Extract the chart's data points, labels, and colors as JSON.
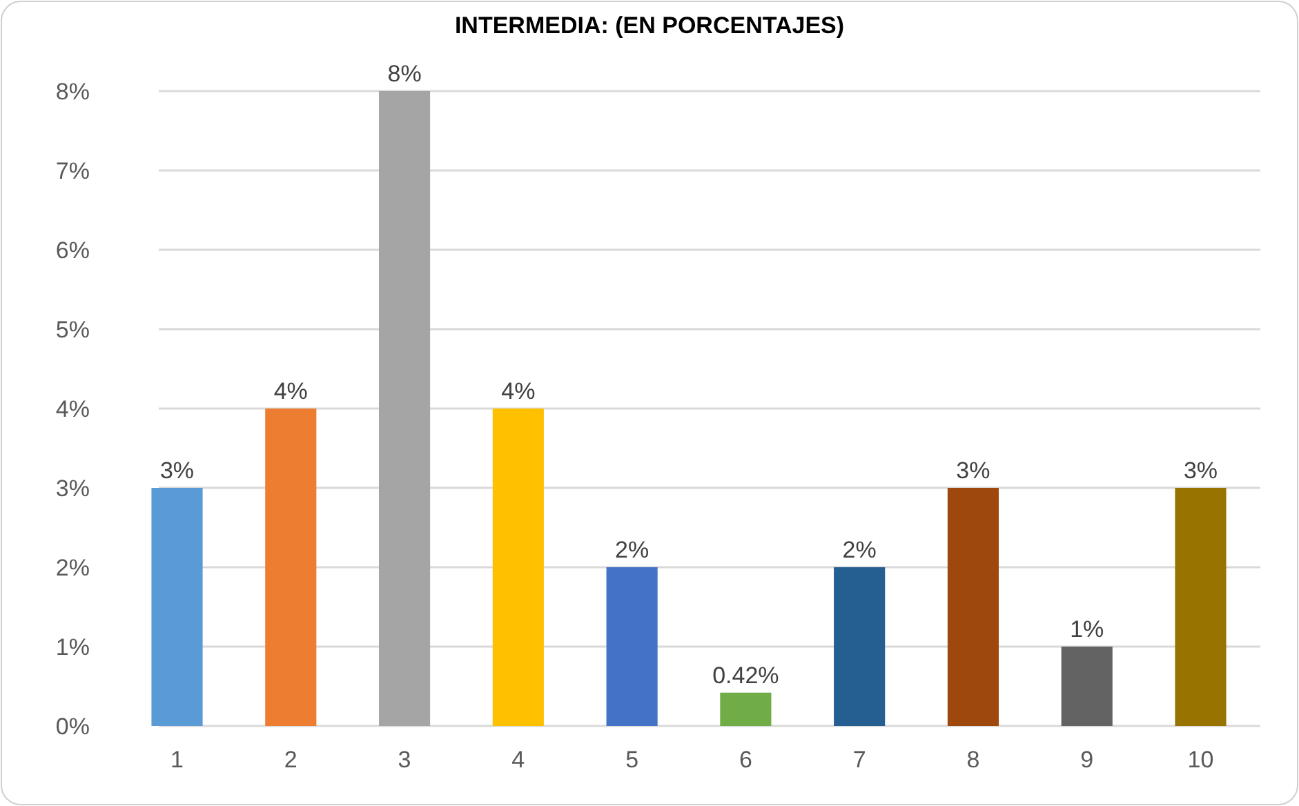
{
  "chart_data": {
    "type": "bar",
    "title": "INTERMEDIA: (EN PORCENTAJES)",
    "categories": [
      "1",
      "2",
      "3",
      "4",
      "5",
      "6",
      "7",
      "8",
      "9",
      "10"
    ],
    "values": [
      3,
      4,
      8,
      4,
      2,
      0.42,
      2,
      3,
      1,
      3
    ],
    "value_labels": [
      "3%",
      "4%",
      "8%",
      "4%",
      "2%",
      "0.42%",
      "2%",
      "3%",
      "1%",
      "3%"
    ],
    "colors": [
      "#5b9bd5",
      "#ed7d31",
      "#a5a5a5",
      "#ffc000",
      "#4472c4",
      "#70ad47",
      "#255e91",
      "#9e480e",
      "#636363",
      "#997300"
    ],
    "ylim": [
      0,
      8
    ],
    "yticks": [
      {
        "value": 0,
        "label": "0%"
      },
      {
        "value": 1,
        "label": "1%"
      },
      {
        "value": 2,
        "label": "2%"
      },
      {
        "value": 3,
        "label": "3%"
      },
      {
        "value": 4,
        "label": "4%"
      },
      {
        "value": 5,
        "label": "5%"
      },
      {
        "value": 6,
        "label": "6%"
      },
      {
        "value": 7,
        "label": "7%"
      },
      {
        "value": 8,
        "label": "8%"
      }
    ],
    "grid": "y"
  }
}
